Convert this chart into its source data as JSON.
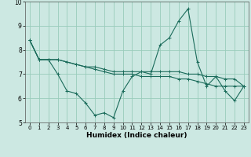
{
  "xlabel": "Humidex (Indice chaleur)",
  "ylabel": "",
  "background_color": "#cce8e2",
  "grid_color": "#99ccbb",
  "line_color": "#1a6b5a",
  "xlim": [
    -0.5,
    23.5
  ],
  "ylim": [
    5,
    10
  ],
  "yticks": [
    5,
    6,
    7,
    8,
    9,
    10
  ],
  "xticks": [
    0,
    1,
    2,
    3,
    4,
    5,
    6,
    7,
    8,
    9,
    10,
    11,
    12,
    13,
    14,
    15,
    16,
    17,
    18,
    19,
    20,
    21,
    22,
    23
  ],
  "series": [
    [
      8.4,
      7.6,
      7.6,
      7.0,
      6.3,
      6.2,
      5.8,
      5.3,
      5.4,
      5.2,
      6.3,
      6.9,
      7.1,
      7.0,
      8.2,
      8.5,
      9.2,
      9.7,
      7.5,
      6.5,
      6.9,
      6.3,
      5.9,
      6.5
    ],
    [
      8.4,
      7.6,
      7.6,
      7.6,
      7.5,
      7.4,
      7.3,
      7.3,
      7.2,
      7.1,
      7.1,
      7.1,
      7.1,
      7.1,
      7.1,
      7.1,
      7.1,
      7.0,
      7.0,
      6.9,
      6.9,
      6.8,
      6.8,
      6.5
    ],
    [
      8.4,
      7.6,
      7.6,
      7.6,
      7.5,
      7.4,
      7.3,
      7.2,
      7.1,
      7.0,
      7.0,
      7.0,
      6.9,
      6.9,
      6.9,
      6.9,
      6.8,
      6.8,
      6.7,
      6.6,
      6.5,
      6.5,
      6.5,
      6.5
    ]
  ]
}
